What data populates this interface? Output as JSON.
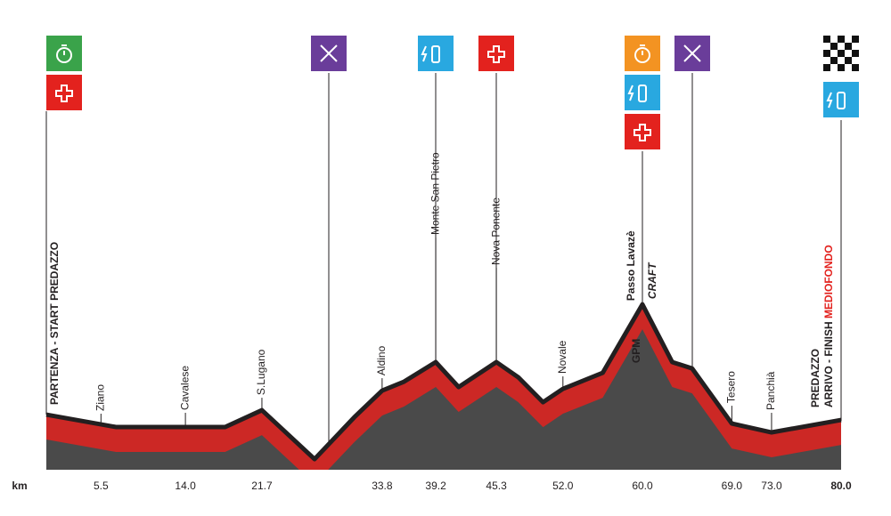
{
  "chart_data": {
    "type": "profile",
    "x_label": "km",
    "start_label": "PARTENZA - START PREDAZZO",
    "finish_label": "ARRIVO - FINISH",
    "finish_event": "MEDIOFONDO",
    "climb_label": "GPM",
    "sponsor": "CRAFT",
    "x": [
      0,
      7,
      18,
      21.7,
      27,
      31,
      33.8,
      36,
      39.2,
      41.5,
      45.3,
      47.5,
      50,
      52,
      56,
      60,
      63,
      65,
      69,
      73,
      80
    ],
    "values": [
      1000,
      910,
      910,
      1032,
      677,
      981,
      1174,
      1239,
      1381,
      1200,
      1381,
      1271,
      1090,
      1187,
      1303,
      1800,
      1381,
      1335,
      935,
      871,
      961
    ],
    "xlim": [
      0,
      80
    ],
    "ylim": [
      600,
      3750
    ],
    "xticks": [
      5.5,
      {
        "value": 14,
        "label": "14.0"
      },
      21.7,
      33.8,
      39.2,
      45.3,
      {
        "value": 52,
        "label": "52.0"
      },
      {
        "value": 60,
        "label": "60.0"
      },
      {
        "value": 69,
        "label": "69.0"
      },
      {
        "value": 73,
        "label": "73.0"
      },
      {
        "value": 80,
        "label": "80.0"
      }
    ],
    "place_names": [
      "Ziano",
      "Cavalese",
      "S.Lugano",
      "Aldino",
      "Monte San Pietro",
      "Nova Ponente",
      "Novale",
      "Passo Lavazè",
      "Tesero",
      "Panchià",
      "PREDAZZO"
    ],
    "line_color": "#231f20",
    "fill_color": "#4a4a4a",
    "accent_color": "#e3221e"
  }
}
